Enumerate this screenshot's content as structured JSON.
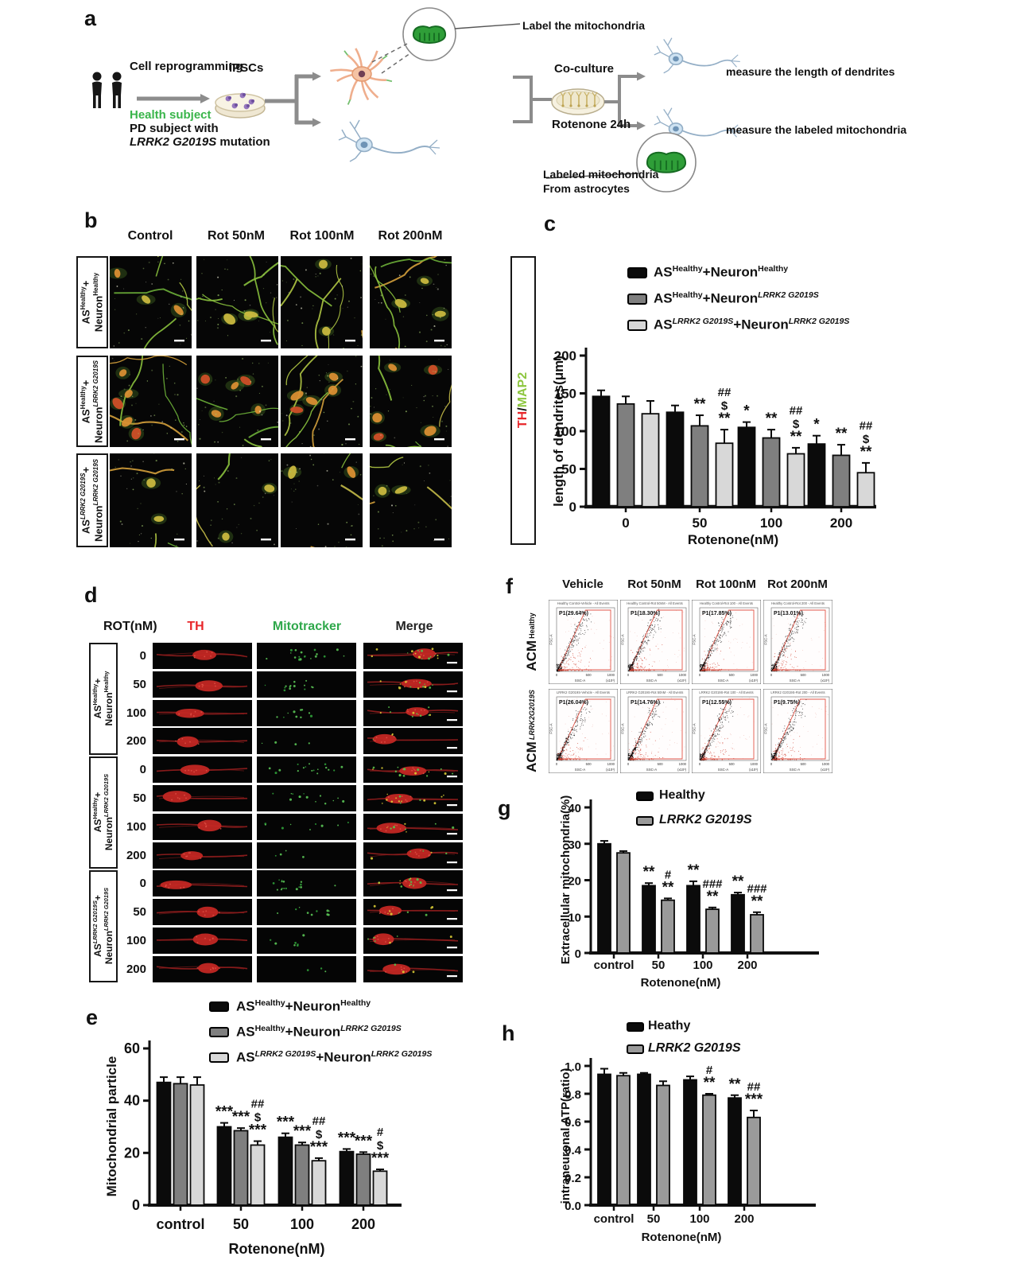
{
  "figure": {
    "panel_letters": {
      "a": "a",
      "b": "b",
      "c": "c",
      "d": "d",
      "e": "e",
      "f": "f",
      "g": "g",
      "h": "h"
    }
  },
  "panels": {
    "a": {
      "texts": {
        "cell_reprogramming": "Cell reprogramming",
        "ipscs": "iPSCs",
        "health_subject": "Health subject",
        "pd_subject": "PD subject with",
        "lrrk2_mutation": "~{LRRK2 G2019S} mutation",
        "label_mitochondria": "Label the mitochondria",
        "co_culture": "Co-culture",
        "rotenone_24h": "Rotenone 24h",
        "measure_dendrites": "measure the length of dendrites",
        "measure_labeled_mito": "measure the labeled mitochondria",
        "labeled_mito_line1": "Labeled mitochondria",
        "labeled_mito_line2": "From astrocytes"
      }
    },
    "b": {
      "col_headers": [
        "Control",
        "Rot 50nM",
        "Rot 100nM",
        "Rot 200nM"
      ],
      "row_labels": [
        [
          "AS^{Healthy}+",
          "Neuron^{Healthy}"
        ],
        [
          "AS^{Healthy}+",
          "Neuron^i{LRRK2 G2019S}"
        ],
        [
          "AS^i{LRRK2 G2019S}+",
          "Neuron^i{LRRK2 G2019S}"
        ]
      ],
      "stain": {
        "th": "TH",
        "sep": "/",
        "map2": "MAP2"
      }
    },
    "d": {
      "rot_header": "ROT(nM)",
      "col_headers": [
        {
          "label": "TH",
          "color": "#e8262a"
        },
        {
          "label": "Mitotracker",
          "color": "#2fa84b"
        },
        {
          "label": "Merge",
          "color": "#232323"
        }
      ],
      "doses": [
        "0",
        "50",
        "100",
        "200"
      ],
      "group_labels": [
        [
          "AS^{Healthy}+",
          "Neuron^{Healthy}"
        ],
        [
          "AS^{Healthy}+",
          "Neuron^i{LRRK2 G2019S}"
        ],
        [
          "AS^i{LRRK2 G2019S}+",
          "Neuron^i{LRRK2 G2019S}"
        ]
      ]
    },
    "f": {
      "col_headers": [
        "Vehicle",
        "Rot 50nM",
        "Rot 100nM",
        "Rot 200nM"
      ],
      "rows": [
        {
          "row_label": "ACM",
          "row_sup": "Healthy",
          "italic_sup": false,
          "plots": [
            {
              "title": "Healthy Control-Vehicle - All Events",
              "p1": "P1(29.64%)"
            },
            {
              "title": "Healthy Control-Rot 50nM - All Events",
              "p1": "P1(18.30%)"
            },
            {
              "title": "Healthy Control-Rot 100 - All Events",
              "p1": "P1(17.85%)"
            },
            {
              "title": "Healthy Control-Rot 200 - All Events",
              "p1": "P1(13.01%)"
            }
          ]
        },
        {
          "row_label": "ACM",
          "row_sup": "LRRK2G2019S",
          "italic_sup": true,
          "plots": [
            {
              "title": "LRRK2 G2019S-Vehicle - All Events",
              "p1": "P1(26.04%)"
            },
            {
              "title": "LRRK2 G2019S-Rot 50nM - All Events",
              "p1": "P1(14.76%)"
            },
            {
              "title": "LRRK2 G2019S-Rot 100 - All Events",
              "p1": "P1(12.55%)"
            },
            {
              "title": "LRRK2 G2019S-Rot 200 - All Events",
              "p1": "P1(9.75%)"
            }
          ]
        }
      ],
      "axis": {
        "xlabel": "SSC-A",
        "ylabel": "FSC-A",
        "xticks": [
          "0",
          "500",
          "1000"
        ],
        "x_unit": "(x10³)"
      }
    }
  },
  "chart_data": [
    {
      "id": "c",
      "type": "bar",
      "title": "",
      "xlabel": "Rotenone(nM)",
      "ylabel": "length of dendrites(μm)",
      "categories": [
        "0",
        "50",
        "100",
        "200"
      ],
      "ylim": [
        0,
        200
      ],
      "yticks": [
        0,
        50,
        100,
        150,
        200
      ],
      "ytick_labels": [
        "0",
        "50",
        "100",
        "150",
        "200"
      ],
      "grid": false,
      "legend_position": "top",
      "series": [
        {
          "name": "AS^{Healthy}+Neuron^{Healthy}",
          "color": "#0b0b0b",
          "values": [
            146,
            125,
            105,
            83
          ],
          "errors": [
            8,
            9,
            7,
            11
          ]
        },
        {
          "name": "AS^{Healthy}+Neuron^i{LRRK2 G2019S}",
          "color": "#7f7f7f",
          "values": [
            136,
            107,
            91,
            68
          ],
          "errors": [
            10,
            14,
            11,
            14
          ]
        },
        {
          "name": "AS^i{LRRK2 G2019S}+Neuron^i{LRRK2 G2019S}",
          "color": "#d8d8d8",
          "values": [
            123,
            84,
            70,
            45
          ],
          "errors": [
            17,
            18,
            8,
            13
          ]
        }
      ],
      "annotations": [
        {
          "cat": 1,
          "series": 1,
          "symbols": [
            "**"
          ]
        },
        {
          "cat": 1,
          "series": 2,
          "symbols": [
            "##",
            "$",
            "**"
          ]
        },
        {
          "cat": 2,
          "series": 0,
          "symbols": [
            "*"
          ]
        },
        {
          "cat": 2,
          "series": 1,
          "symbols": [
            "**"
          ]
        },
        {
          "cat": 2,
          "series": 2,
          "symbols": [
            "##",
            "$",
            "**"
          ]
        },
        {
          "cat": 3,
          "series": 0,
          "symbols": [
            "*"
          ]
        },
        {
          "cat": 3,
          "series": 1,
          "symbols": [
            "**"
          ]
        },
        {
          "cat": 3,
          "series": 2,
          "symbols": [
            "##",
            "$",
            "**"
          ]
        }
      ]
    },
    {
      "id": "e",
      "type": "bar",
      "title": "",
      "xlabel": "Rotenone(nM)",
      "ylabel": "Mitochondrial particle",
      "categories": [
        "control",
        "50",
        "100",
        "200"
      ],
      "ylim": [
        0,
        60
      ],
      "yticks": [
        0,
        20,
        40,
        60
      ],
      "ytick_labels": [
        "0",
        "20",
        "40",
        "60"
      ],
      "grid": false,
      "legend_position": "top",
      "series": [
        {
          "name": "AS^{Healthy}+Neuron^{Healthy}",
          "color": "#0b0b0b",
          "values": [
            47,
            30,
            26,
            20.5
          ],
          "errors": [
            2,
            1.5,
            1.5,
            1
          ]
        },
        {
          "name": "AS^{Healthy}+Neuron^i{LRRK2 G2019S}",
          "color": "#7f7f7f",
          "values": [
            46.5,
            28.5,
            23,
            19.5
          ],
          "errors": [
            2.5,
            1,
            1,
            0.8
          ]
        },
        {
          "name": "AS^i{LRRK2 G2019S}+Neuron^i{LRRK2 G2019S}",
          "color": "#d8d8d8",
          "values": [
            46,
            23,
            17,
            13
          ],
          "errors": [
            3,
            1.5,
            1,
            0.7
          ]
        }
      ],
      "annotations": [
        {
          "cat": 1,
          "series": 0,
          "symbols": [
            "***"
          ]
        },
        {
          "cat": 1,
          "series": 1,
          "symbols": [
            "***"
          ]
        },
        {
          "cat": 1,
          "series": 2,
          "symbols": [
            "##",
            "$",
            "***"
          ]
        },
        {
          "cat": 2,
          "series": 0,
          "symbols": [
            "***"
          ]
        },
        {
          "cat": 2,
          "series": 1,
          "symbols": [
            "***"
          ]
        },
        {
          "cat": 2,
          "series": 2,
          "symbols": [
            "##",
            "$",
            "***"
          ]
        },
        {
          "cat": 3,
          "series": 0,
          "symbols": [
            "***"
          ]
        },
        {
          "cat": 3,
          "series": 1,
          "symbols": [
            "***"
          ]
        },
        {
          "cat": 3,
          "series": 2,
          "symbols": [
            "#",
            "$",
            "***"
          ]
        }
      ]
    },
    {
      "id": "g",
      "type": "bar",
      "title": "",
      "xlabel": "Rotenone(nM)",
      "ylabel": "Extracellular mitochondria(%)",
      "categories": [
        "control",
        "50",
        "100",
        "200"
      ],
      "ylim": [
        0,
        40
      ],
      "yticks": [
        0,
        10,
        20,
        30,
        40
      ],
      "ytick_labels": [
        "0",
        "10",
        "20",
        "30",
        "40"
      ],
      "grid": false,
      "legend_position": "top",
      "series": [
        {
          "name": "Healthy",
          "color": "#0b0b0b",
          "values": [
            30,
            18.5,
            18.5,
            16
          ],
          "errors": [
            0.8,
            0.7,
            1.2,
            0.6
          ]
        },
        {
          "name": "~{LRRK2 G2019S}",
          "color": "#9a9a9a",
          "values": [
            27.5,
            14.5,
            12,
            10.5
          ],
          "errors": [
            0.5,
            0.5,
            0.5,
            0.7
          ]
        }
      ],
      "annotations": [
        {
          "cat": 1,
          "series": 0,
          "symbols": [
            "**"
          ]
        },
        {
          "cat": 1,
          "series": 1,
          "symbols": [
            "#",
            "**"
          ]
        },
        {
          "cat": 2,
          "series": 0,
          "symbols": [
            "**"
          ]
        },
        {
          "cat": 2,
          "series": 1,
          "symbols": [
            "###",
            "**"
          ]
        },
        {
          "cat": 3,
          "series": 0,
          "symbols": [
            "**"
          ]
        },
        {
          "cat": 3,
          "series": 1,
          "symbols": [
            "###",
            "**"
          ]
        }
      ]
    },
    {
      "id": "h",
      "type": "bar",
      "title": "",
      "xlabel": "Rotenone(nM)",
      "ylabel": "intraneuronal ATP(ratio)",
      "categories": [
        "control",
        "50",
        "100",
        "200"
      ],
      "ylim": [
        0,
        1
      ],
      "yticks": [
        0,
        0.2,
        0.4,
        0.6,
        0.8,
        1
      ],
      "ytick_labels": [
        "0.0",
        "0.2",
        "0.4",
        "0.6",
        "0.8",
        "1.0"
      ],
      "grid": false,
      "legend_position": "top",
      "series": [
        {
          "name": "Heathy",
          "color": "#0b0b0b",
          "values": [
            0.94,
            0.94,
            0.9,
            0.77
          ],
          "errors": [
            0.04,
            0.01,
            0.025,
            0.02
          ]
        },
        {
          "name": "~{LRRK2 G2019S}",
          "color": "#9a9a9a",
          "values": [
            0.93,
            0.86,
            0.79,
            0.63
          ],
          "errors": [
            0.02,
            0.03,
            0.01,
            0.05
          ]
        }
      ],
      "annotations": [
        {
          "cat": 2,
          "series": 1,
          "symbols": [
            "#",
            "**"
          ]
        },
        {
          "cat": 3,
          "series": 0,
          "symbols": [
            "**"
          ]
        },
        {
          "cat": 3,
          "series": 1,
          "symbols": [
            "##",
            "***"
          ]
        }
      ]
    }
  ]
}
